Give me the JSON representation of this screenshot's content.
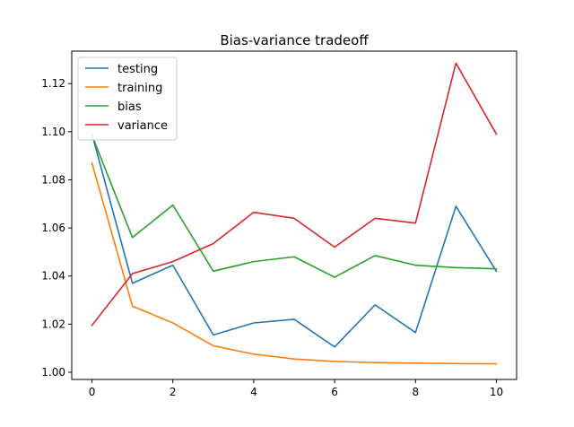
{
  "chart_data": {
    "type": "line",
    "title": "Bias-variance tradeoff",
    "xlabel": "",
    "ylabel": "",
    "x": [
      0,
      1,
      2,
      3,
      4,
      5,
      6,
      7,
      8,
      9,
      10
    ],
    "xlim": [
      -0.5,
      10.5
    ],
    "ylim": [
      0.997,
      1.1335
    ],
    "x_ticks": [
      0,
      2,
      4,
      6,
      8,
      10
    ],
    "y_ticks": [
      1.0,
      1.02,
      1.04,
      1.06,
      1.08,
      1.1,
      1.12
    ],
    "y_tick_labels": [
      "1.00",
      "1.02",
      "1.04",
      "1.06",
      "1.08",
      "1.10",
      "1.12"
    ],
    "grid": false,
    "legend_position": "top-left",
    "series": [
      {
        "name": "testing",
        "color": "#1f77b4",
        "values": [
          1.099,
          1.037,
          1.0445,
          1.0155,
          1.0205,
          1.022,
          1.0105,
          1.028,
          1.0165,
          1.069,
          1.042
        ]
      },
      {
        "name": "training",
        "color": "#ff7f0e",
        "values": [
          1.087,
          1.0275,
          1.0205,
          1.011,
          1.0075,
          1.0055,
          1.0045,
          1.004,
          1.0038,
          1.0036,
          1.0035
        ]
      },
      {
        "name": "bias",
        "color": "#2ca02c",
        "values": [
          1.0985,
          1.056,
          1.0695,
          1.042,
          1.046,
          1.048,
          1.0395,
          1.0485,
          1.0445,
          1.0435,
          1.043
        ]
      },
      {
        "name": "variance",
        "color": "#d62728",
        "values": [
          1.0195,
          1.041,
          1.046,
          1.0535,
          1.0665,
          1.064,
          1.052,
          1.064,
          1.062,
          1.1285,
          1.099
        ]
      }
    ]
  }
}
